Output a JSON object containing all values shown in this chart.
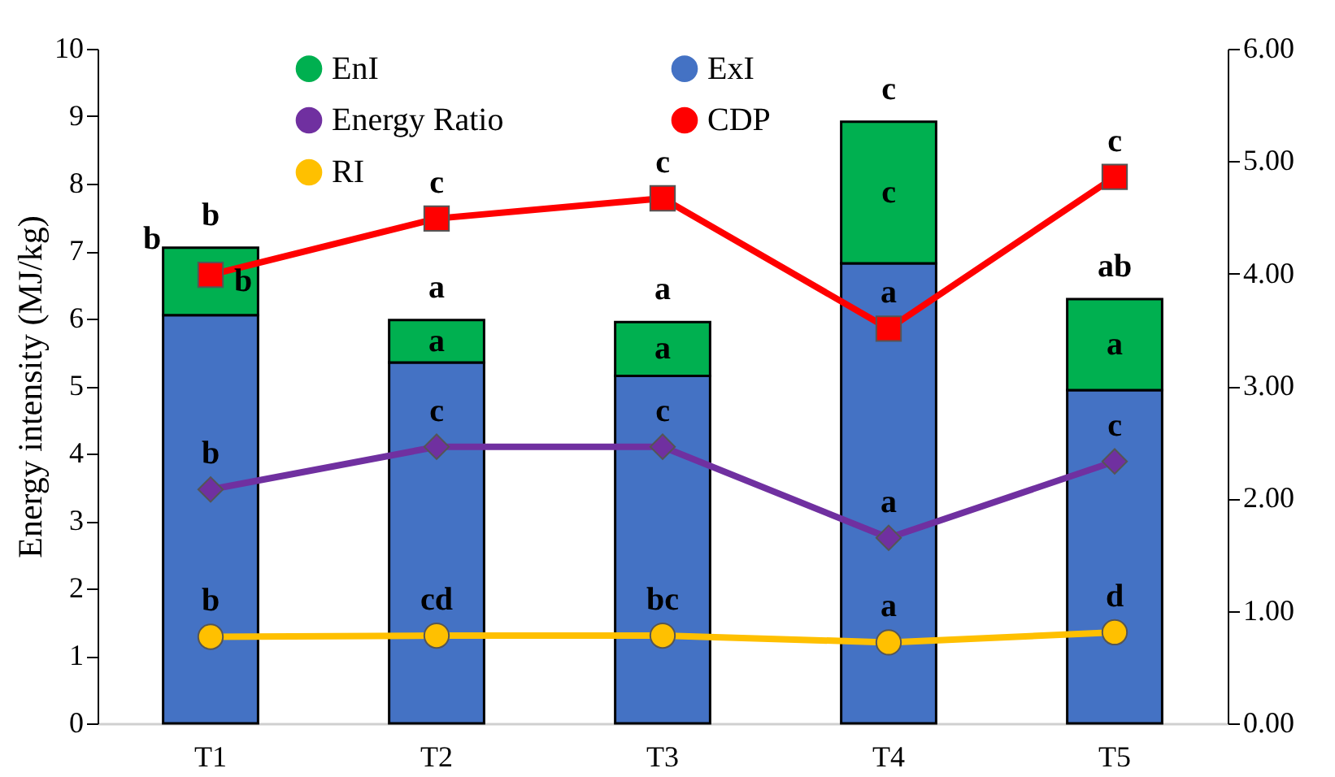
{
  "chart_data": {
    "type": "bar",
    "stacked": true,
    "ylabel": "Energy intensity (MJ/kg)",
    "categories": [
      "T1",
      "T2",
      "T3",
      "T4",
      "T5"
    ],
    "series": [
      {
        "name": "ExI",
        "color": "#4472c4",
        "values": [
          6.05,
          5.35,
          5.15,
          6.82,
          4.94
        ]
      },
      {
        "name": "EnI",
        "color": "#00b050",
        "values": [
          1.0,
          0.63,
          0.8,
          2.1,
          1.35
        ],
        "value_labels": [
          "b",
          "a",
          "a",
          "c",
          "a"
        ]
      },
      {
        "name": "Energy Ratio",
        "type": "line",
        "axis": "y2",
        "marker": "diamond",
        "color": "#7030a0",
        "values": [
          2.08,
          2.46,
          2.46,
          1.65,
          2.33
        ],
        "value_labels": [
          "b",
          "c",
          "c",
          "a",
          "c"
        ]
      },
      {
        "name": "CDP",
        "type": "line",
        "axis": "y2",
        "marker": "square",
        "color": "#ff0000",
        "values": [
          3.99,
          4.49,
          4.67,
          3.51,
          4.86
        ],
        "value_labels": [
          "b",
          "c",
          "c",
          "a",
          "c"
        ]
      },
      {
        "name": "RI",
        "type": "line",
        "axis": "y2",
        "marker": "circle",
        "color": "#ffc000",
        "values": [
          0.77,
          0.78,
          0.78,
          0.72,
          0.81
        ],
        "value_labels": [
          "b",
          "cd",
          "bc",
          "a",
          "d"
        ]
      }
    ],
    "ylim": [
      0,
      10
    ],
    "yticks": [
      0,
      1,
      2,
      3,
      4,
      5,
      6,
      7,
      8,
      9,
      10
    ],
    "y2lim": [
      0,
      6
    ],
    "y2ticks": [
      {
        "value": 0,
        "label": "0.00"
      },
      {
        "value": 1,
        "label": "1.00"
      },
      {
        "value": 2,
        "label": "2.00"
      },
      {
        "value": 3,
        "label": "3.00"
      },
      {
        "value": 4,
        "label": "4.00"
      },
      {
        "value": 5,
        "label": "5.00"
      },
      {
        "value": 6,
        "label": "6.00"
      }
    ],
    "totals": [
      "b",
      "a",
      "a",
      "c",
      "ab"
    ],
    "grid": false,
    "legend": "top left"
  }
}
